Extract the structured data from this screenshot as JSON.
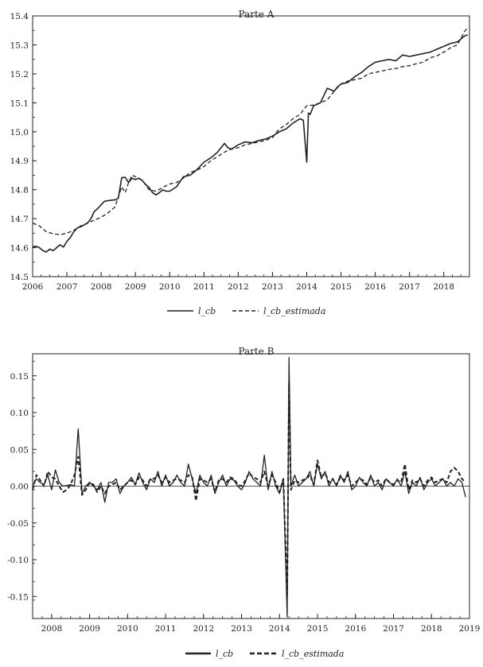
{
  "chart_data": [
    {
      "type": "line",
      "title": "Parte A",
      "ylim": [
        14.5,
        15.4
      ],
      "xlim": [
        2006.0,
        2018.75
      ],
      "yticks": [
        "14.5",
        "14.6",
        "14.7",
        "14.8",
        "14.9",
        "15.0",
        "15.1",
        "15.2",
        "15.3",
        "15.4"
      ],
      "xticks": [
        "2006",
        "2007",
        "2008",
        "2009",
        "2010",
        "2011",
        "2012",
        "2013",
        "2014",
        "2015",
        "2016",
        "2017",
        "2018"
      ],
      "legend_position": "bottom",
      "series": [
        {
          "name": "l_cb",
          "style": "solid",
          "color": "#222222",
          "x": [
            2006.0,
            2006.1,
            2006.2,
            2006.3,
            2006.4,
            2006.5,
            2006.6,
            2006.7,
            2006.8,
            2006.9,
            2007.0,
            2007.1,
            2007.2,
            2007.3,
            2007.4,
            2007.5,
            2007.6,
            2007.7,
            2007.8,
            2007.9,
            2008.0,
            2008.1,
            2008.2,
            2008.3,
            2008.4,
            2008.5,
            2008.6,
            2008.7,
            2008.8,
            2008.9,
            2009.0,
            2009.1,
            2009.2,
            2009.3,
            2009.4,
            2009.5,
            2009.6,
            2009.7,
            2009.8,
            2009.9,
            2010.0,
            2010.2,
            2010.4,
            2010.6,
            2010.8,
            2011.0,
            2011.2,
            2011.4,
            2011.6,
            2011.7,
            2011.8,
            2012.0,
            2012.2,
            2012.4,
            2012.6,
            2012.8,
            2013.0,
            2013.2,
            2013.4,
            2013.6,
            2013.8,
            2013.9,
            2014.0,
            2014.05,
            2014.1,
            2014.2,
            2014.3,
            2014.4,
            2014.5,
            2014.6,
            2014.7,
            2014.8,
            2014.9,
            2015.0,
            2015.2,
            2015.4,
            2015.6,
            2015.8,
            2016.0,
            2016.2,
            2016.4,
            2016.6,
            2016.8,
            2017.0,
            2017.2,
            2017.4,
            2017.6,
            2017.8,
            2018.0,
            2018.2,
            2018.4,
            2018.6,
            2018.7
          ],
          "y": [
            14.603,
            14.605,
            14.6,
            14.59,
            14.585,
            14.595,
            14.59,
            14.6,
            14.61,
            14.602,
            14.622,
            14.635,
            14.655,
            14.668,
            14.672,
            14.678,
            14.685,
            14.7,
            14.725,
            14.735,
            14.748,
            14.76,
            14.762,
            14.764,
            14.765,
            14.77,
            14.842,
            14.843,
            14.825,
            14.84,
            14.835,
            14.84,
            14.832,
            14.818,
            14.808,
            14.79,
            14.782,
            14.79,
            14.8,
            14.795,
            14.795,
            14.81,
            14.845,
            14.85,
            14.87,
            14.895,
            14.91,
            14.93,
            14.96,
            14.945,
            14.94,
            14.955,
            14.965,
            14.962,
            14.97,
            14.975,
            14.985,
            15.0,
            15.01,
            15.03,
            15.045,
            15.04,
            14.895,
            15.065,
            15.06,
            15.09,
            15.095,
            15.1,
            15.125,
            15.15,
            15.145,
            15.14,
            15.155,
            15.165,
            15.17,
            15.19,
            15.205,
            15.225,
            15.24,
            15.245,
            15.25,
            15.245,
            15.265,
            15.26,
            15.265,
            15.27,
            15.275,
            15.285,
            15.295,
            15.305,
            15.31,
            15.33,
            15.335
          ]
        },
        {
          "name": "l_cb_estimada",
          "style": "dashed",
          "color": "#222222",
          "x": [
            2006.0,
            2006.2,
            2006.4,
            2006.6,
            2006.8,
            2007.0,
            2007.2,
            2007.4,
            2007.6,
            2007.8,
            2008.0,
            2008.2,
            2008.4,
            2008.6,
            2008.7,
            2008.8,
            2008.9,
            2009.0,
            2009.2,
            2009.4,
            2009.6,
            2009.8,
            2010.0,
            2010.2,
            2010.4,
            2010.6,
            2010.8,
            2011.0,
            2011.2,
            2011.4,
            2011.6,
            2011.8,
            2012.0,
            2012.2,
            2012.4,
            2012.6,
            2012.8,
            2013.0,
            2013.2,
            2013.4,
            2013.6,
            2013.8,
            2014.0,
            2014.2,
            2014.4,
            2014.6,
            2014.8,
            2015.0,
            2015.2,
            2015.4,
            2015.6,
            2015.8,
            2016.0,
            2016.2,
            2016.4,
            2016.6,
            2016.8,
            2017.0,
            2017.2,
            2017.4,
            2017.6,
            2017.8,
            2018.0,
            2018.2,
            2018.4,
            2018.6,
            2018.7
          ],
          "y": [
            14.685,
            14.675,
            14.655,
            14.648,
            14.645,
            14.65,
            14.66,
            14.675,
            14.685,
            14.695,
            14.705,
            14.72,
            14.74,
            14.81,
            14.79,
            14.825,
            14.85,
            14.845,
            14.832,
            14.8,
            14.795,
            14.808,
            14.82,
            14.825,
            14.84,
            14.86,
            14.868,
            14.88,
            14.9,
            14.915,
            14.93,
            14.94,
            14.945,
            14.955,
            14.96,
            14.965,
            14.97,
            14.98,
            15.01,
            15.025,
            15.045,
            15.06,
            15.09,
            15.092,
            15.1,
            15.11,
            15.14,
            15.165,
            15.175,
            15.18,
            15.185,
            15.2,
            15.205,
            15.21,
            15.215,
            15.218,
            15.225,
            15.228,
            15.235,
            15.24,
            15.255,
            15.262,
            15.275,
            15.29,
            15.3,
            15.345,
            15.36
          ]
        }
      ]
    },
    {
      "type": "line",
      "title": "Parte B",
      "ylim": [
        -0.18,
        0.18
      ],
      "xlim": [
        2007.5,
        2019.0
      ],
      "yticks": [
        "-0.15",
        "-0.10",
        "-0.05",
        "0.00",
        "0.05",
        "0.10",
        "0.15"
      ],
      "xticks": [
        "2008",
        "2009",
        "2010",
        "2011",
        "2012",
        "2013",
        "2014",
        "2015",
        "2016",
        "2017",
        "2018",
        "2019"
      ],
      "legend_position": "bottom",
      "series": [
        {
          "name": "l_cb",
          "style": "solid",
          "color": "#222222",
          "x": [
            2007.5,
            2007.6,
            2007.7,
            2007.8,
            2007.9,
            2008.0,
            2008.1,
            2008.2,
            2008.3,
            2008.4,
            2008.5,
            2008.6,
            2008.7,
            2008.8,
            2008.9,
            2009.0,
            2009.1,
            2009.2,
            2009.3,
            2009.4,
            2009.5,
            2009.6,
            2009.7,
            2009.8,
            2009.9,
            2010.0,
            2010.1,
            2010.2,
            2010.3,
            2010.4,
            2010.5,
            2010.6,
            2010.7,
            2010.8,
            2010.9,
            2011.0,
            2011.1,
            2011.2,
            2011.3,
            2011.4,
            2011.5,
            2011.6,
            2011.7,
            2011.8,
            2011.9,
            2012.0,
            2012.1,
            2012.2,
            2012.3,
            2012.4,
            2012.5,
            2012.6,
            2012.7,
            2012.8,
            2012.9,
            2013.0,
            2013.1,
            2013.2,
            2013.3,
            2013.4,
            2013.5,
            2013.6,
            2013.7,
            2013.8,
            2013.9,
            2014.0,
            2014.1,
            2014.2,
            2014.25,
            2014.3,
            2014.4,
            2014.5,
            2014.6,
            2014.7,
            2014.8,
            2014.9,
            2015.0,
            2015.1,
            2015.2,
            2015.3,
            2015.4,
            2015.5,
            2015.6,
            2015.7,
            2015.8,
            2015.9,
            2016.0,
            2016.1,
            2016.2,
            2016.3,
            2016.4,
            2016.5,
            2016.6,
            2016.7,
            2016.8,
            2016.9,
            2017.0,
            2017.1,
            2017.2,
            2017.3,
            2017.4,
            2017.5,
            2017.6,
            2017.7,
            2017.8,
            2017.9,
            2018.0,
            2018.1,
            2018.2,
            2018.3,
            2018.4,
            2018.5,
            2018.6,
            2018.7,
            2018.8,
            2018.9
          ],
          "y": [
            0.0,
            0.01,
            0.005,
            0.002,
            0.015,
            -0.005,
            0.022,
            0.005,
            0.0,
            0.001,
            0.002,
            0.0,
            0.078,
            -0.01,
            0.0,
            0.005,
            0.0,
            -0.005,
            0.005,
            -0.022,
            0.005,
            0.005,
            0.01,
            -0.01,
            0.0,
            0.005,
            0.012,
            0.002,
            0.018,
            0.005,
            -0.005,
            0.01,
            0.005,
            0.02,
            0.0,
            0.015,
            0.0,
            0.005,
            0.015,
            0.005,
            0.0,
            0.03,
            0.01,
            -0.01,
            0.015,
            0.005,
            0.0,
            0.015,
            -0.01,
            0.005,
            0.015,
            0.0,
            0.01,
            0.008,
            0.0,
            -0.005,
            0.005,
            0.02,
            0.01,
            0.005,
            0.0,
            0.042,
            -0.005,
            0.02,
            0.0,
            -0.01,
            0.01,
            -0.178,
            0.175,
            0.0,
            0.015,
            0.0,
            0.005,
            0.01,
            0.02,
            0.0,
            0.03,
            0.01,
            0.02,
            0.0,
            0.01,
            0.0,
            0.015,
            0.005,
            0.02,
            -0.005,
            0.0,
            0.012,
            0.005,
            0.0,
            0.015,
            0.0,
            0.005,
            -0.005,
            0.01,
            0.005,
            0.0,
            0.01,
            0.0,
            0.02,
            -0.01,
            0.005,
            0.0,
            0.012,
            -0.005,
            0.005,
            0.01,
            0.0,
            0.005,
            0.01,
            0.0,
            0.005,
            0.0,
            0.01,
            0.005,
            -0.015
          ]
        },
        {
          "name": "l_cb_estimada",
          "style": "dashed",
          "color": "#222222",
          "x": [
            2007.5,
            2007.6,
            2007.7,
            2007.8,
            2007.9,
            2008.0,
            2008.1,
            2008.2,
            2008.3,
            2008.4,
            2008.5,
            2008.6,
            2008.7,
            2008.8,
            2008.9,
            2009.0,
            2009.1,
            2009.2,
            2009.3,
            2009.4,
            2009.5,
            2009.6,
            2009.7,
            2009.8,
            2009.9,
            2010.0,
            2010.1,
            2010.2,
            2010.3,
            2010.4,
            2010.5,
            2010.6,
            2010.7,
            2010.8,
            2010.9,
            2011.0,
            2011.1,
            2011.2,
            2011.3,
            2011.4,
            2011.5,
            2011.6,
            2011.7,
            2011.8,
            2011.9,
            2012.0,
            2012.1,
            2012.2,
            2012.3,
            2012.4,
            2012.5,
            2012.6,
            2012.7,
            2012.8,
            2012.9,
            2013.0,
            2013.1,
            2013.2,
            2013.3,
            2013.4,
            2013.5,
            2013.6,
            2013.7,
            2013.8,
            2013.9,
            2014.0,
            2014.1,
            2014.2,
            2014.25,
            2014.3,
            2014.4,
            2014.5,
            2014.6,
            2014.7,
            2014.8,
            2014.9,
            2015.0,
            2015.1,
            2015.2,
            2015.3,
            2015.4,
            2015.5,
            2015.6,
            2015.7,
            2015.8,
            2015.9,
            2016.0,
            2016.1,
            2016.2,
            2016.3,
            2016.4,
            2016.5,
            2016.6,
            2016.7,
            2016.8,
            2016.9,
            2017.0,
            2017.1,
            2017.2,
            2017.3,
            2017.4,
            2017.5,
            2017.6,
            2017.7,
            2017.8,
            2017.9,
            2018.0,
            2018.1,
            2018.2,
            2018.3,
            2018.4,
            2018.5,
            2018.6,
            2018.7,
            2018.8,
            2018.9
          ],
          "y": [
            -0.005,
            0.015,
            0.008,
            0.0,
            0.02,
            0.012,
            0.01,
            0.0,
            -0.008,
            -0.005,
            0.002,
            0.015,
            0.04,
            -0.012,
            -0.005,
            0.005,
            0.002,
            -0.008,
            0.0,
            -0.01,
            0.0,
            0.002,
            0.005,
            -0.005,
            0.0,
            0.005,
            0.008,
            0.002,
            0.012,
            0.008,
            0.0,
            0.01,
            0.01,
            0.015,
            0.005,
            0.012,
            0.005,
            0.008,
            0.01,
            0.008,
            0.005,
            0.015,
            0.012,
            -0.02,
            0.01,
            0.008,
            0.005,
            0.01,
            -0.008,
            0.008,
            0.01,
            0.005,
            0.012,
            0.01,
            0.002,
            0.0,
            0.008,
            0.018,
            0.012,
            0.01,
            0.005,
            0.02,
            0.0,
            0.015,
            0.005,
            -0.008,
            0.01,
            -0.15,
            0.14,
            -0.005,
            0.008,
            0.005,
            0.008,
            0.01,
            0.015,
            0.002,
            0.035,
            0.012,
            0.018,
            0.005,
            0.01,
            0.002,
            0.012,
            0.008,
            0.015,
            0.0,
            0.005,
            0.01,
            0.008,
            0.002,
            0.012,
            0.005,
            0.008,
            0.0,
            0.01,
            0.005,
            0.002,
            0.008,
            0.005,
            0.03,
            -0.005,
            0.008,
            0.005,
            0.01,
            0.0,
            0.008,
            0.012,
            0.005,
            0.008,
            0.01,
            0.005,
            0.02,
            0.025,
            0.02,
            0.01,
            0.005
          ]
        }
      ]
    }
  ]
}
